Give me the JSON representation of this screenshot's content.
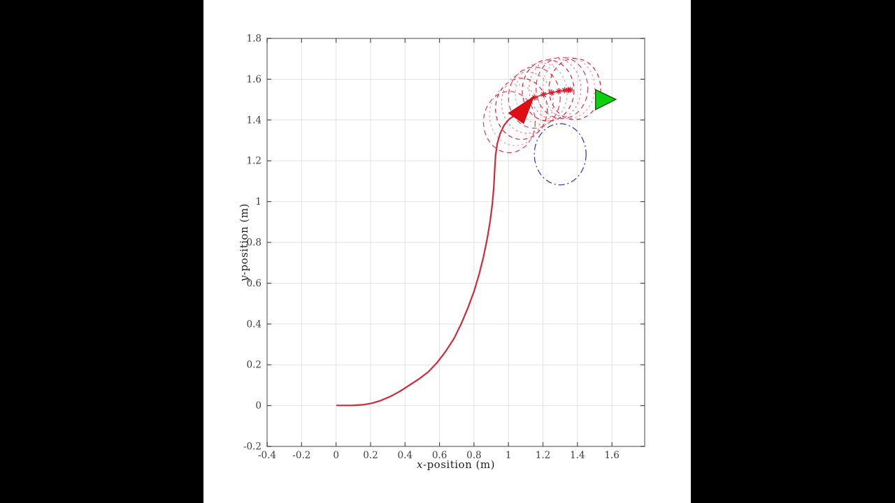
{
  "scene": {
    "letterbox_color": "#000000",
    "frame_background": "#ffffff"
  },
  "chart_data": {
    "type": "line",
    "title": "",
    "xlabel": "x-position (m)",
    "ylabel": "y-position (m)",
    "xlabel_var": "x",
    "xlabel_rest": "-position (m)",
    "ylabel_var": "y",
    "ylabel_rest": "-position (m)",
    "xlim": [
      -0.4,
      1.79
    ],
    "ylim": [
      -0.2,
      1.8
    ],
    "grid": true,
    "legend": "none",
    "x_ticks": [
      -0.4,
      -0.2,
      0,
      0.2,
      0.4,
      0.6,
      0.8,
      1,
      1.2,
      1.4,
      1.6
    ],
    "x_tick_labels": [
      "-0.4",
      "-0.2",
      "0",
      "0.2",
      "0.4",
      "0.6",
      "0.8",
      "1",
      "1.2",
      "1.4",
      "1.6"
    ],
    "y_ticks": [
      -0.2,
      0,
      0.2,
      0.4,
      0.6,
      0.8,
      1,
      1.2,
      1.4,
      1.6,
      1.8
    ],
    "y_tick_labels": [
      "-0.2",
      "0",
      "0.2",
      "0.4",
      "0.6",
      "0.8",
      "1",
      "1.2",
      "1.4",
      "1.6",
      "1.8"
    ],
    "colors": {
      "grid": "#e2e2e2",
      "axis_box": "#8c8c8c",
      "tick_mark": "#4a4a4a",
      "tick_label": "#3d3d3d",
      "trajectory": "#d2293a",
      "path_markers": "#e01224",
      "heading_arrow": "#e00d16",
      "goal_arrow_fill": "#0ad20a",
      "goal_arrow_edge": "#135813",
      "obstacle_circle": "#3a3ac0",
      "footprint_dark_red": "#dc1f33",
      "footprint_light_pink": "#f2919f"
    },
    "series": [
      {
        "name": "robot-trajectory",
        "style": "solid",
        "points": [
          [
            0.005,
            0.001
          ],
          [
            0.09,
            0.001
          ],
          [
            0.155,
            0.004
          ],
          [
            0.21,
            0.012
          ],
          [
            0.26,
            0.025
          ],
          [
            0.315,
            0.045
          ],
          [
            0.37,
            0.07
          ],
          [
            0.425,
            0.1
          ],
          [
            0.48,
            0.13
          ],
          [
            0.535,
            0.165
          ],
          [
            0.585,
            0.21
          ],
          [
            0.635,
            0.265
          ],
          [
            0.685,
            0.33
          ],
          [
            0.725,
            0.4
          ],
          [
            0.765,
            0.48
          ],
          [
            0.8,
            0.56
          ],
          [
            0.83,
            0.645
          ],
          [
            0.855,
            0.73
          ],
          [
            0.876,
            0.815
          ],
          [
            0.893,
            0.9
          ],
          [
            0.906,
            0.985
          ],
          [
            0.915,
            1.07
          ],
          [
            0.92,
            1.155
          ],
          [
            0.925,
            1.225
          ],
          [
            0.935,
            1.285
          ],
          [
            0.952,
            1.335
          ],
          [
            0.975,
            1.375
          ],
          [
            1.005,
            1.405
          ],
          [
            1.04,
            1.425
          ],
          [
            1.065,
            1.435
          ]
        ]
      },
      {
        "name": "predicted-path-markers",
        "style": "solid-with-asterisks",
        "points": [
          [
            1.15,
            1.51
          ],
          [
            1.204,
            1.526
          ],
          [
            1.251,
            1.534
          ],
          [
            1.292,
            1.541
          ],
          [
            1.326,
            1.546
          ],
          [
            1.346,
            1.547
          ],
          [
            1.359,
            1.548
          ]
        ]
      }
    ],
    "footprint_circles": {
      "name": "robot-footprint-circles",
      "radius": 0.15,
      "centers": [
        [
          1.005,
          1.39
        ],
        [
          1.04,
          1.425
        ],
        [
          1.075,
          1.455
        ],
        [
          1.11,
          1.485
        ],
        [
          1.15,
          1.51
        ],
        [
          1.19,
          1.53
        ],
        [
          1.23,
          1.545
        ],
        [
          1.27,
          1.553
        ],
        [
          1.31,
          1.557
        ],
        [
          1.35,
          1.557
        ],
        [
          1.385,
          1.552
        ]
      ],
      "dash_styles": [
        "7 5",
        "2.5 4",
        "6 5",
        "2.5 4",
        "7 5",
        "2.5 4",
        "6 5",
        "2.5 4",
        "7 5",
        "2.5 4",
        "6 5"
      ],
      "stroke_colors": [
        "#e63950",
        "#f2919f",
        "#dc1f33",
        "#ef7487",
        "#e63950",
        "#f2919f",
        "#dc1f33",
        "#ef7487",
        "#e63950",
        "#f2919f",
        "#dc1f33"
      ]
    },
    "obstacle_circle": {
      "name": "obstacle-circle",
      "center": [
        1.3,
        1.232
      ],
      "radius": 0.15,
      "dash": "9 4 2 4"
    },
    "heading_arrow": {
      "name": "robot-heading-arrow",
      "points": [
        [
          1.148,
          1.516
        ],
        [
          1.0,
          1.434
        ],
        [
          1.088,
          1.383
        ]
      ]
    },
    "goal_arrow": {
      "name": "goal-heading-arrow",
      "points": [
        [
          1.623,
          1.501
        ],
        [
          1.505,
          1.549
        ],
        [
          1.505,
          1.451
        ]
      ]
    }
  }
}
